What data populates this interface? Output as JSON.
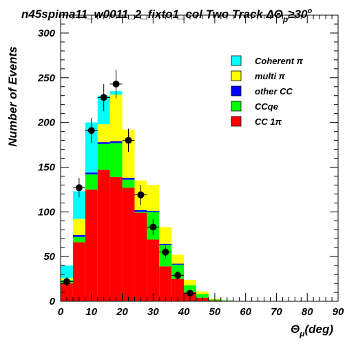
{
  "chart_data": {
    "type": "bar",
    "stacked": true,
    "title": "n45spima11_w0011_2_fixto1_col Two Track ΔΘ",
    "title_sub": "p",
    "title_suffix": "≥30",
    "title_sup": "o",
    "ylabel": "Number of Events",
    "xlabel_main": "Θ",
    "xlabel_sub": "μ",
    "xlabel_suffix": "(deg)",
    "xlim": [
      0,
      90
    ],
    "ylim": [
      0,
      320
    ],
    "x_ticks": [
      0,
      10,
      20,
      30,
      40,
      50,
      60,
      70,
      80,
      90
    ],
    "y_ticks": [
      0,
      50,
      100,
      150,
      200,
      250,
      300
    ],
    "x_tick_labels": [
      "0",
      "10",
      "20",
      "30",
      "40",
      "50",
      "60",
      "70",
      "80",
      "90"
    ],
    "y_tick_labels": [
      "0",
      "50",
      "100",
      "150",
      "200",
      "250",
      "300"
    ],
    "bin_edges": [
      0,
      4,
      8,
      12,
      16,
      20,
      24,
      28,
      32,
      36,
      40,
      44,
      48,
      52,
      56,
      60,
      64,
      68,
      72,
      76,
      80,
      84,
      88,
      90
    ],
    "series": [
      {
        "name": "CC 1π",
        "color": "#ff0000",
        "values": [
          20,
          66,
          125,
          147,
          139,
          127,
          99,
          69,
          39,
          25,
          10,
          4,
          1,
          0.5,
          0,
          0,
          0,
          0,
          0,
          0,
          0,
          0,
          0
        ]
      },
      {
        "name": "CCqe",
        "color": "#00ff00",
        "values": [
          4,
          6,
          17,
          29,
          38,
          9,
          1,
          31,
          24,
          16,
          8,
          4,
          1,
          0.5,
          0.3,
          0,
          0,
          0,
          0,
          0,
          0,
          0,
          0
        ]
      },
      {
        "name": "other CC",
        "color": "#0000ff",
        "values": [
          0,
          2,
          2,
          2,
          2,
          2,
          2,
          1,
          1,
          1,
          0,
          0,
          0,
          0,
          0,
          0,
          0,
          0,
          0,
          0,
          0,
          0,
          0
        ]
      },
      {
        "name": "multi π",
        "color": "#ffff00",
        "values": [
          2,
          18,
          0,
          20,
          52,
          54,
          33,
          29,
          19,
          10,
          6,
          3,
          1,
          0,
          0,
          0,
          0,
          0,
          0,
          0,
          0,
          0,
          0
        ]
      },
      {
        "name": "Coherent π",
        "color": "#00ffff",
        "values": [
          14,
          31,
          56,
          32,
          4,
          0,
          0,
          0,
          0,
          0,
          0,
          0,
          0,
          0,
          0,
          0,
          0,
          0,
          0,
          0,
          0,
          0,
          0
        ]
      }
    ],
    "legend_order": [
      "Coherent π",
      "multi π",
      "other CC",
      "CCqe",
      "CC 1π"
    ],
    "data_points": [
      {
        "x": 2,
        "y": 22,
        "err": 5
      },
      {
        "x": 6,
        "y": 127,
        "err": 11
      },
      {
        "x": 10,
        "y": 191,
        "err": 14
      },
      {
        "x": 14,
        "y": 228,
        "err": 15
      },
      {
        "x": 18,
        "y": 243,
        "err": 16
      },
      {
        "x": 22,
        "y": 180,
        "err": 13
      },
      {
        "x": 26,
        "y": 119,
        "err": 11
      },
      {
        "x": 30,
        "y": 83,
        "err": 9
      },
      {
        "x": 34,
        "y": 55,
        "err": 7
      },
      {
        "x": 38,
        "y": 29,
        "err": 5
      },
      {
        "x": 42,
        "y": 9,
        "err": 3
      }
    ],
    "legend_placement": "top-right",
    "grid": false
  }
}
